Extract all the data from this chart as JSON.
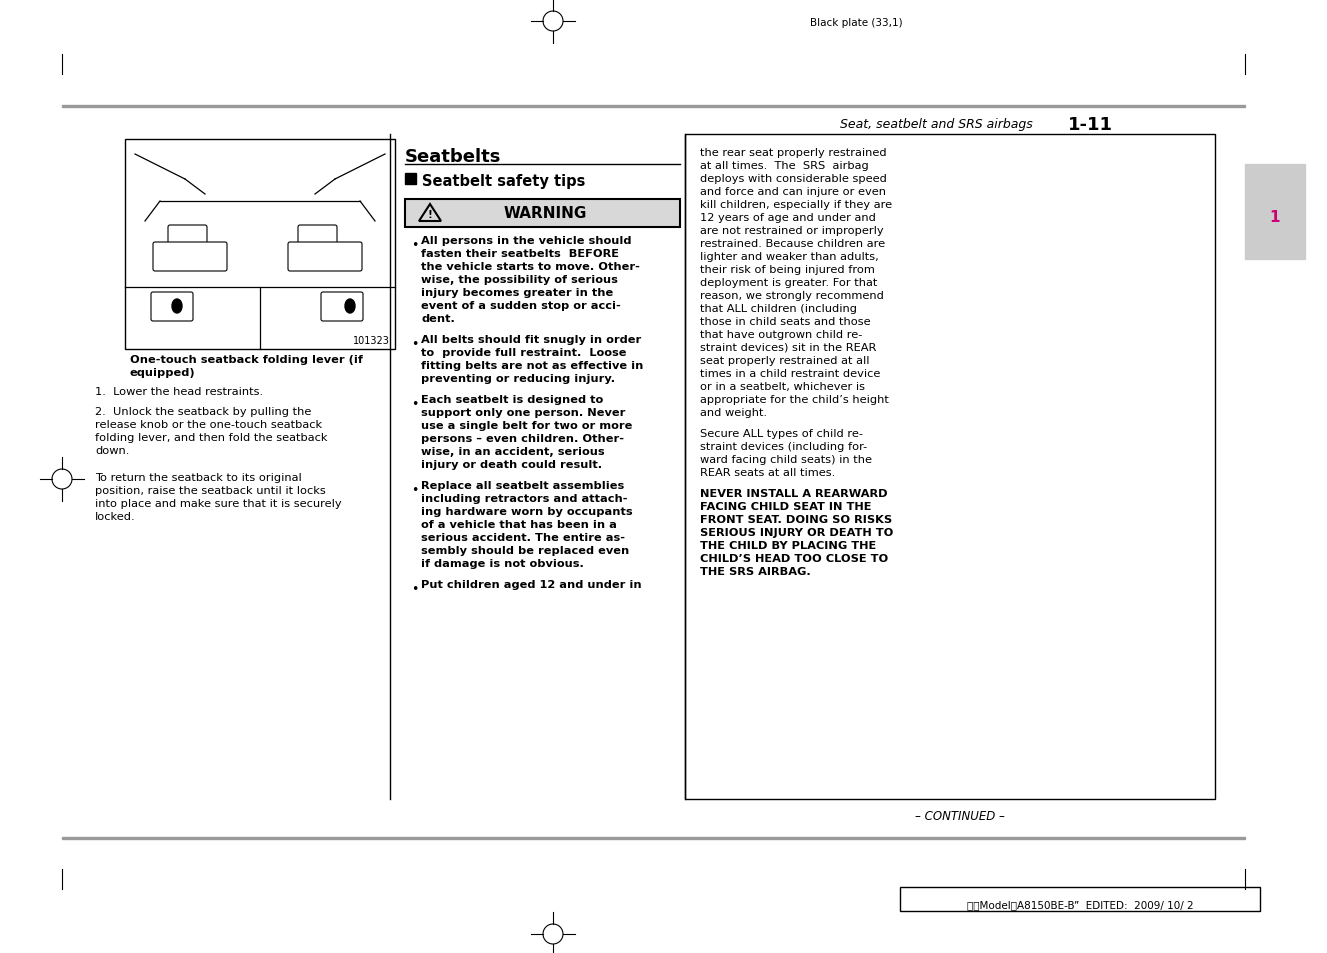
{
  "page_title_top": "Black plate (33,1)",
  "section_header": "Seat, seatbelt and SRS airbags",
  "section_number": "1-11",
  "tab_number": "1",
  "main_title": "Seatbelts",
  "sub_title": "Seatbelt safety tips",
  "warning_label": "WARNING",
  "image_code": "101323",
  "image_caption_line1": "One-touch seatback folding lever (if",
  "image_caption_line2": "equipped)",
  "left_text_1": "1.  Lower the head restraints.",
  "left_text_2a": "2.  Unlock the seatback by pulling the",
  "left_text_2b": "release knob or the one-touch seatback",
  "left_text_2c": "folding lever, and then fold the seatback",
  "left_text_2d": "down.",
  "left_text_3a": "To return the seatback to its original",
  "left_text_3b": "position, raise the seatback until it locks",
  "left_text_3c": "into place and make sure that it is securely",
  "left_text_3d": "locked.",
  "b1": [
    "All persons in the vehicle should",
    "fasten their seatbelts  BEFORE",
    "the vehicle starts to move. Other-",
    "wise, the possibility of serious",
    "injury becomes greater in the",
    "event of a sudden stop or acci-",
    "dent."
  ],
  "b2": [
    "All belts should fit snugly in order",
    "to  provide full restraint.  Loose",
    "fitting belts are not as effective in",
    "preventing or reducing injury."
  ],
  "b3": [
    "Each seatbelt is designed to",
    "support only one person. Never",
    "use a single belt for two or more",
    "persons – even children. Other-",
    "wise, in an accident, serious",
    "injury or death could result."
  ],
  "b4": [
    "Replace all seatbelt assemblies",
    "including retractors and attach-",
    "ing hardware worn by occupants",
    "of a vehicle that has been in a",
    "serious accident. The entire as-",
    "sembly should be replaced even",
    "if damage is not obvious."
  ],
  "b5": "Put children aged 12 and under in",
  "rc1": [
    "the rear seat properly restrained",
    "at all times.  The  SRS  airbag",
    "deploys with considerable speed",
    "and force and can injure or even",
    "kill children, especially if they are",
    "12 years of age and under and",
    "are not restrained or improperly",
    "restrained. Because children are",
    "lighter and weaker than adults,",
    "their risk of being injured from",
    "deployment is greater. For that",
    "reason, we strongly recommend",
    "that ALL children (including",
    "those in child seats and those",
    "that have outgrown child re-",
    "straint devices) sit in the REAR",
    "seat properly restrained at all",
    "times in a child restraint device",
    "or in a seatbelt, whichever is",
    "appropriate for the child’s height",
    "and weight."
  ],
  "rc2": [
    "Secure ALL types of child re-",
    "straint devices (including for-",
    "ward facing child seats) in the",
    "REAR seats at all times."
  ],
  "rc3": [
    "NEVER INSTALL A REARWARD",
    "FACING CHILD SEAT IN THE",
    "FRONT SEAT. DOING SO RISKS",
    "SERIOUS INJURY OR DEATH TO",
    "THE CHILD BY PLACING THE",
    "CHILD’S HEAD TOO CLOSE TO",
    "THE SRS AIRBAG."
  ],
  "continued": "– CONTINUED –",
  "footer": "北米ModelＢA8150BE-B”  EDITED:  2009/ 10/ 2"
}
